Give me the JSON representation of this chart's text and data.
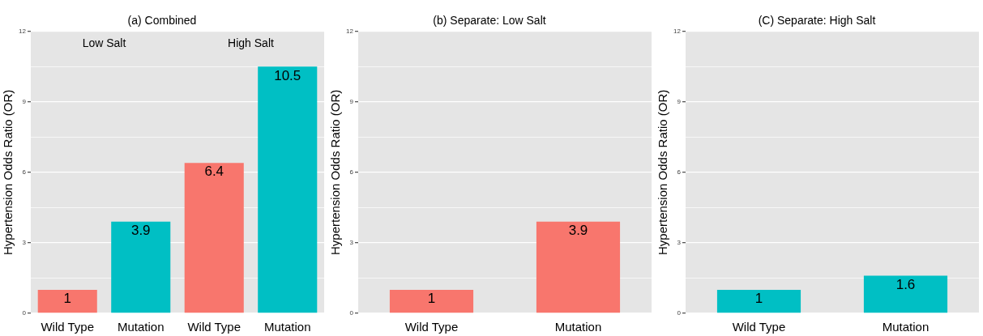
{
  "chart_data": [
    {
      "type": "bar",
      "title": "(a) Combined",
      "ylabel": "Hypertension Odds Ratio (OR)",
      "categories": [
        "Wild Type",
        "Mutation",
        "Wild Type",
        "Mutation"
      ],
      "values": [
        1,
        3.9,
        6.4,
        10.5
      ],
      "colors": [
        "#f8766d",
        "#00bfc4",
        "#f8766d",
        "#00bfc4"
      ],
      "ylim": [
        0,
        12
      ],
      "yticks": [
        0,
        {
          "value": 1.5,
          "label": null
        },
        3,
        {
          "value": 4.5,
          "label": null
        },
        6,
        {
          "value": 7.5,
          "label": null
        },
        9,
        {
          "value": 10.5,
          "label": null
        },
        12
      ],
      "grid": "y",
      "data_labels": true,
      "annotations": [
        "Low Salt",
        "High Salt"
      ]
    },
    {
      "type": "bar",
      "title": "(b) Separate: Low Salt",
      "ylabel": "Hypertension Odds Ratio (OR)",
      "categories": [
        "Wild Type",
        "Mutation"
      ],
      "values": [
        1,
        3.9
      ],
      "colors": [
        "#f8766d",
        "#f8766d"
      ],
      "ylim": [
        0,
        12
      ],
      "yticks": [
        0,
        {
          "value": 1.5,
          "label": null
        },
        3,
        {
          "value": 4.5,
          "label": null
        },
        6,
        {
          "value": 7.5,
          "label": null
        },
        9,
        {
          "value": 10.5,
          "label": null
        },
        12
      ],
      "grid": "y",
      "data_labels": true
    },
    {
      "type": "bar",
      "title": "(C) Separate: High Salt",
      "ylabel": "Hypertension Odds Ratio (OR)",
      "categories": [
        "Wild Type",
        "Mutation"
      ],
      "values": [
        1,
        1.6
      ],
      "colors": [
        "#00bfc4",
        "#00bfc4"
      ],
      "ylim": [
        0,
        12
      ],
      "yticks": [
        0,
        {
          "value": 1.5,
          "label": null
        },
        3,
        {
          "value": 4.5,
          "label": null
        },
        6,
        {
          "value": 7.5,
          "label": null
        },
        9,
        {
          "value": 10.5,
          "label": null
        },
        12
      ],
      "grid": "y",
      "data_labels": true
    }
  ]
}
